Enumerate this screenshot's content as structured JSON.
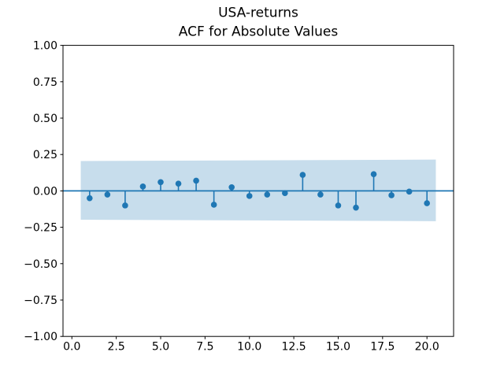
{
  "chart_data": {
    "type": "stem",
    "title_line1": "USA-returns",
    "title_line2": "ACF for Absolute Values",
    "x": [
      1,
      2,
      3,
      4,
      5,
      6,
      7,
      8,
      9,
      10,
      11,
      12,
      13,
      14,
      15,
      16,
      17,
      18,
      19,
      20
    ],
    "values": [
      -0.05,
      -0.025,
      -0.1,
      0.03,
      0.06,
      0.05,
      0.07,
      -0.095,
      0.025,
      -0.035,
      -0.025,
      -0.015,
      0.11,
      -0.025,
      -0.1,
      -0.115,
      0.115,
      -0.03,
      -0.005,
      -0.085
    ],
    "baseline": 0.0,
    "xlim": [
      -0.5,
      21.5
    ],
    "ylim": [
      -1.0,
      1.0
    ],
    "xticks": [
      0,
      2.5,
      5,
      7.5,
      10,
      12.5,
      15,
      17.5,
      20
    ],
    "xtick_labels": [
      "0.0",
      "2.5",
      "5.0",
      "7.5",
      "10.0",
      "12.5",
      "15.0",
      "17.5",
      "20.0"
    ],
    "yticks": [
      1.0,
      0.75,
      0.5,
      0.25,
      0.0,
      -0.25,
      -0.5,
      -0.75,
      -1.0
    ],
    "ytick_labels": [
      "1.00",
      "0.75",
      "0.50",
      "0.25",
      "0.00",
      "−0.25",
      "−0.50",
      "−0.75",
      "−1.00"
    ],
    "confidence_band": {
      "x": [
        0.5,
        20.5
      ],
      "top": [
        0.205,
        0.215
      ],
      "bottom": [
        -0.198,
        -0.208
      ]
    },
    "grid": false,
    "legend": false,
    "accent_color": "#1f77b4",
    "band_opacity": 0.25,
    "spine_color": "#000000",
    "background_color": "#ffffff"
  }
}
